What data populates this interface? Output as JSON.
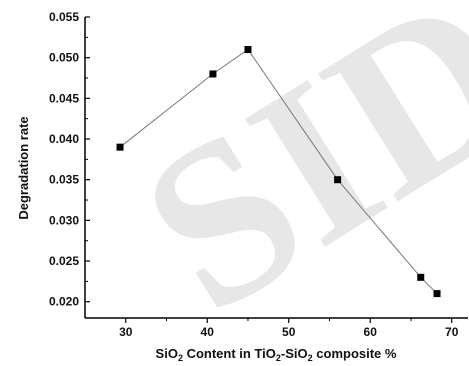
{
  "chart_data": {
    "type": "line",
    "title": "",
    "xlabel": "SiO2 Content in TiO2-SiO2 composite %",
    "ylabel": "Degradation rate",
    "xlim": [
      25,
      72
    ],
    "ylim": [
      0.018,
      0.055
    ],
    "x_ticks": [
      30,
      40,
      50,
      60,
      70
    ],
    "y_ticks": [
      0.02,
      0.025,
      0.03,
      0.035,
      0.04,
      0.045,
      0.05,
      0.055
    ],
    "y_tick_decimals": 3,
    "grid": false,
    "legend": "none",
    "marker": "square",
    "line_color": "#777777",
    "marker_color": "#000000",
    "series": [
      {
        "x": [
          29.3,
          40.7,
          45.0,
          56.0,
          66.2,
          68.2
        ],
        "y": [
          0.039,
          0.048,
          0.051,
          0.035,
          0.023,
          0.021
        ]
      }
    ]
  },
  "xlabel_parts": {
    "a": "SiO",
    "a_sub": "2",
    "b": " Content in TiO",
    "b_sub": "2",
    "c": "-SiO",
    "c_sub": "2",
    "d": " composite %"
  },
  "watermark": "SID"
}
